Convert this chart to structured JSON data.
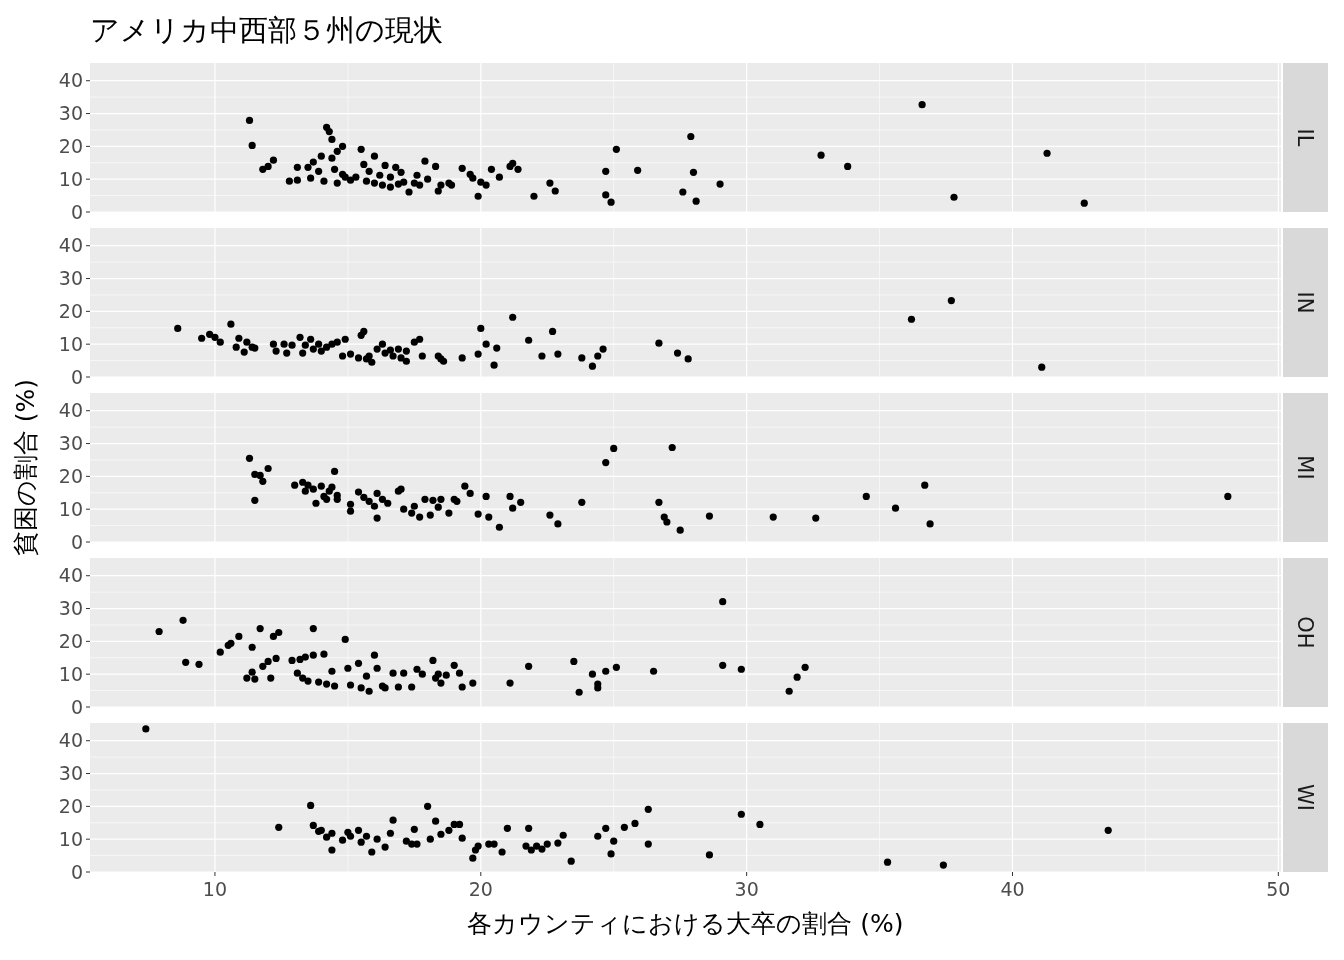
{
  "chart_data": [
    {
      "type": "scatter",
      "title": "アメリカ中西部５州の現状",
      "xlim": [
        5.3,
        50.1
      ],
      "ylim": [
        0,
        45.4
      ],
      "xticks": [
        10,
        20,
        30,
        40,
        50
      ],
      "yticks": [
        0,
        10,
        20,
        30,
        40
      ],
      "tick_labels": "y",
      "grid": true,
      "marker": "circle",
      "series": [
        {
          "name": "IL",
          "color": "#000000",
          "x": [
            11.3,
            11.4,
            11.8,
            12.0,
            12.2,
            12.8,
            13.1,
            13.1,
            13.5,
            13.6,
            13.7,
            13.9,
            14.0,
            14.1,
            14.2,
            14.3,
            14.4,
            14.4,
            14.5,
            14.6,
            14.6,
            14.8,
            14.8,
            14.9,
            15.1,
            15.3,
            15.5,
            15.6,
            15.7,
            15.8,
            16.0,
            16.0,
            16.2,
            16.3,
            16.4,
            16.6,
            16.6,
            16.8,
            16.9,
            17.0,
            17.1,
            17.3,
            17.5,
            17.6,
            17.7,
            17.9,
            18.0,
            18.3,
            18.4,
            18.5,
            18.8,
            18.9,
            19.3,
            19.6,
            19.7,
            19.9,
            20.0,
            20.2,
            20.4,
            20.7,
            21.1,
            21.2,
            21.4,
            22.0,
            22.6,
            22.8,
            24.7,
            24.7,
            24.9,
            25.1,
            25.9,
            27.6,
            27.9,
            28.0,
            28.1,
            29.0,
            32.8,
            33.8,
            36.6,
            37.8,
            41.3,
            42.7
          ],
          "values": [
            27.9,
            20.3,
            13,
            13.9,
            15.8,
            9.4,
            13.6,
            9.7,
            13.6,
            10.3,
            15.2,
            12.4,
            17,
            9.4,
            25.8,
            24.5,
            22.1,
            16.4,
            13,
            18.5,
            8.8,
            20,
            11.5,
            10.6,
            9.7,
            10.6,
            19.1,
            14.5,
            9.4,
            12.4,
            17,
            8.8,
            11.2,
            8.2,
            14.2,
            7.6,
            10.6,
            13.6,
            8.5,
            12.1,
            9.1,
            6.1,
            8.8,
            11.2,
            8.2,
            15.5,
            10,
            13.9,
            6.4,
            8.2,
            8.8,
            8.2,
            13.3,
            11.5,
            10.3,
            4.8,
            9.1,
            8.2,
            13,
            10.6,
            13.9,
            14.8,
            13,
            4.8,
            8.8,
            6.4,
            12.4,
            5.2,
            3,
            19.1,
            12.7,
            6.1,
            23,
            12.1,
            3.3,
            8.5,
            17.3,
            13.9,
            32.7,
            4.5,
            17.9,
            2.7
          ]
        }
      ]
    },
    {
      "type": "scatter",
      "xlim": [
        5.3,
        50.1
      ],
      "ylim": [
        0,
        45.4
      ],
      "xticks": [
        10,
        20,
        30,
        40,
        50
      ],
      "yticks": [
        0,
        10,
        20,
        30,
        40
      ],
      "tick_labels": "y",
      "grid": true,
      "marker": "circle",
      "series": [
        {
          "name": "IN",
          "color": "#000000",
          "x": [
            8.6,
            9.5,
            9.8,
            10.0,
            10.2,
            10.6,
            10.8,
            10.9,
            11.1,
            11.2,
            11.4,
            11.5,
            12.2,
            12.3,
            12.6,
            12.7,
            12.9,
            13.2,
            13.3,
            13.4,
            13.6,
            13.7,
            13.9,
            14.0,
            14.2,
            14.4,
            14.6,
            14.8,
            14.9,
            15.1,
            15.4,
            15.5,
            15.6,
            15.7,
            15.8,
            15.9,
            16.1,
            16.3,
            16.4,
            16.6,
            16.7,
            16.9,
            17.0,
            17.2,
            17.2,
            17.5,
            17.7,
            17.8,
            18.4,
            18.5,
            18.6,
            19.3,
            19.9,
            20.0,
            20.2,
            20.5,
            20.6,
            21.2,
            21.8,
            22.3,
            22.7,
            22.9,
            23.8,
            24.2,
            24.4,
            24.6,
            26.7,
            27.4,
            27.8,
            36.2,
            37.7,
            41.1
          ],
          "values": [
            14.8,
            11.8,
            13,
            12.1,
            10.6,
            16.1,
            9.1,
            11.8,
            7.6,
            10.6,
            9.1,
            8.8,
            10,
            7.9,
            10,
            7.3,
            9.7,
            12.1,
            7.3,
            9.7,
            11.5,
            8.5,
            10,
            7.9,
            9.1,
            10,
            10.6,
            6.4,
            11.5,
            7,
            5.8,
            12.7,
            13.9,
            5.5,
            6.4,
            4.5,
            8.5,
            10,
            7.3,
            8.2,
            6.4,
            8.5,
            5.8,
            4.8,
            7.9,
            10.6,
            11.5,
            6.4,
            6.4,
            5.5,
            4.8,
            5.8,
            7,
            14.8,
            10,
            3.6,
            8.8,
            18.2,
            11.2,
            6.4,
            13.9,
            7,
            5.8,
            3.3,
            6.4,
            8.5,
            10.3,
            7.3,
            5.5,
            17.6,
            23.3,
            3
          ]
        }
      ]
    },
    {
      "type": "scatter",
      "ylabel": "貧困の割合 (%)",
      "xlim": [
        5.3,
        50.1
      ],
      "ylim": [
        0,
        45.4
      ],
      "xticks": [
        10,
        20,
        30,
        40,
        50
      ],
      "yticks": [
        0,
        10,
        20,
        30,
        40
      ],
      "tick_labels": "y",
      "grid": true,
      "marker": "circle",
      "series": [
        {
          "name": "MI",
          "color": "#000000",
          "x": [
            11.3,
            11.5,
            11.5,
            11.7,
            11.8,
            12.0,
            13.0,
            13.3,
            13.4,
            13.5,
            13.7,
            13.8,
            14.0,
            14.1,
            14.2,
            14.3,
            14.4,
            14.5,
            14.6,
            14.6,
            15.1,
            15.1,
            15.4,
            15.6,
            15.8,
            16.0,
            16.1,
            16.1,
            16.3,
            16.5,
            16.9,
            17.0,
            17.1,
            17.4,
            17.5,
            17.7,
            17.9,
            18.1,
            18.2,
            18.4,
            18.5,
            18.8,
            19.0,
            19.1,
            19.4,
            19.6,
            19.9,
            20.2,
            20.3,
            20.7,
            21.1,
            21.2,
            21.5,
            22.6,
            22.9,
            23.8,
            24.7,
            25.0,
            26.7,
            26.9,
            27.0,
            27.2,
            27.5,
            28.6,
            31.0,
            32.6,
            34.5,
            35.6,
            36.7,
            36.9,
            48.1
          ],
          "values": [
            25.5,
            20.6,
            12.7,
            20.3,
            18.5,
            22.4,
            17.3,
            18.2,
            15.5,
            17.3,
            16.1,
            11.8,
            17,
            13.9,
            13,
            15.5,
            16.7,
            21.5,
            14.2,
            13,
            11.5,
            9.4,
            15.2,
            13.6,
            12.4,
            10.9,
            14.8,
            7.3,
            13,
            11.8,
            15.5,
            16.1,
            10,
            8.8,
            10.9,
            7.6,
            13,
            8.2,
            12.7,
            10.6,
            13,
            8.8,
            13,
            12.4,
            17,
            14.8,
            8.5,
            13.9,
            7.6,
            4.5,
            13.9,
            10.3,
            12.1,
            8.2,
            5.5,
            12.1,
            24.2,
            28.5,
            12.1,
            7.6,
            6.1,
            28.8,
            3.6,
            7.9,
            7.6,
            7.3,
            13.9,
            10.3,
            17.3,
            5.5,
            13.9
          ]
        }
      ]
    },
    {
      "type": "scatter",
      "xlim": [
        5.3,
        50.1
      ],
      "ylim": [
        0,
        45.4
      ],
      "xticks": [
        10,
        20,
        30,
        40,
        50
      ],
      "yticks": [
        0,
        10,
        20,
        30,
        40
      ],
      "tick_labels": "y",
      "grid": true,
      "marker": "circle",
      "series": [
        {
          "name": "OH",
          "color": "#000000",
          "x": [
            7.9,
            8.8,
            8.9,
            9.4,
            10.2,
            10.5,
            10.6,
            10.9,
            11.2,
            11.4,
            11.4,
            11.5,
            11.7,
            11.8,
            12.0,
            12.1,
            12.2,
            12.3,
            12.4,
            12.9,
            13.1,
            13.2,
            13.3,
            13.4,
            13.5,
            13.7,
            13.7,
            13.9,
            14.1,
            14.2,
            14.4,
            14.5,
            14.9,
            15.0,
            15.1,
            15.4,
            15.5,
            15.7,
            15.8,
            16.0,
            16.1,
            16.3,
            16.4,
            16.7,
            16.9,
            17.1,
            17.4,
            17.6,
            17.8,
            18.2,
            18.3,
            18.4,
            18.5,
            18.7,
            19.0,
            19.2,
            19.3,
            19.7,
            21.1,
            21.8,
            23.5,
            23.7,
            24.2,
            24.4,
            24.4,
            24.7,
            25.1,
            26.5,
            29.1,
            29.1,
            29.8,
            31.6,
            31.9,
            32.2
          ],
          "values": [
            23,
            26.4,
            13.6,
            13,
            16.7,
            18.8,
            19.4,
            21.5,
            8.8,
            10.6,
            18.2,
            8.5,
            23.9,
            12.4,
            13.9,
            8.8,
            21.5,
            14.8,
            22.7,
            14.2,
            10.3,
            14.5,
            8.8,
            15.2,
            7.9,
            23.9,
            15.8,
            7.6,
            16.1,
            7,
            10.9,
            6.4,
            20.6,
            11.8,
            6.7,
            13.3,
            5.8,
            9.4,
            4.8,
            15.8,
            11.8,
            6.4,
            5.8,
            10.3,
            6.1,
            10.3,
            6.1,
            11.5,
            10,
            14.2,
            8.8,
            10,
            7.3,
            9.7,
            12.7,
            10.3,
            6.1,
            7.3,
            7.3,
            12.4,
            13.9,
            4.5,
            10,
            5.8,
            7,
            10.9,
            12.1,
            10.9,
            32.1,
            12.7,
            11.5,
            4.8,
            9.1,
            12.1
          ]
        }
      ]
    },
    {
      "type": "scatter",
      "xlabel": "各カウンティにおける大卒の割合 (%)",
      "xlim": [
        5.3,
        50.1
      ],
      "ylim": [
        0,
        45.4
      ],
      "xticks": [
        10,
        20,
        30,
        40,
        50
      ],
      "yticks": [
        0,
        10,
        20,
        30,
        40
      ],
      "grid": true,
      "marker": "circle",
      "series": [
        {
          "name": "WI",
          "color": "#000000",
          "x": [
            7.4,
            12.4,
            13.6,
            13.7,
            13.9,
            14.0,
            14.2,
            14.4,
            14.4,
            14.8,
            15.0,
            15.1,
            15.4,
            15.5,
            15.7,
            15.9,
            16.1,
            16.4,
            16.6,
            16.7,
            17.2,
            17.4,
            17.5,
            17.6,
            18.0,
            18.1,
            18.3,
            18.5,
            18.8,
            19.0,
            19.2,
            19.3,
            19.8,
            19.9,
            19.7,
            20.3,
            20.5,
            20.8,
            21.0,
            21.7,
            21.8,
            21.9,
            22.1,
            22.3,
            22.5,
            22.9,
            23.1,
            23.4,
            24.4,
            24.7,
            24.9,
            25.0,
            25.4,
            25.8,
            26.3,
            26.3,
            28.6,
            29.8,
            30.5,
            35.3,
            37.4,
            43.6
          ],
          "values": [
            43.6,
            13.6,
            20.3,
            14.2,
            12.4,
            12.7,
            10.6,
            6.7,
            11.8,
            9.7,
            12.1,
            10.9,
            12.7,
            9.1,
            10.9,
            6.1,
            10,
            7.6,
            11.8,
            15.8,
            9.4,
            8.5,
            13,
            8.5,
            20,
            10,
            15.5,
            11.5,
            12.7,
            14.5,
            14.5,
            10.3,
            6.7,
            7.9,
            4.2,
            8.5,
            8.5,
            6.1,
            13.3,
            7.9,
            13.3,
            6.7,
            7.9,
            7,
            8.5,
            8.8,
            11.2,
            3.3,
            10.9,
            13.3,
            5.5,
            9.4,
            13.6,
            14.8,
            19.1,
            8.5,
            5.2,
            17.6,
            14.5,
            3,
            2.1,
            12.7
          ]
        }
      ]
    }
  ]
}
